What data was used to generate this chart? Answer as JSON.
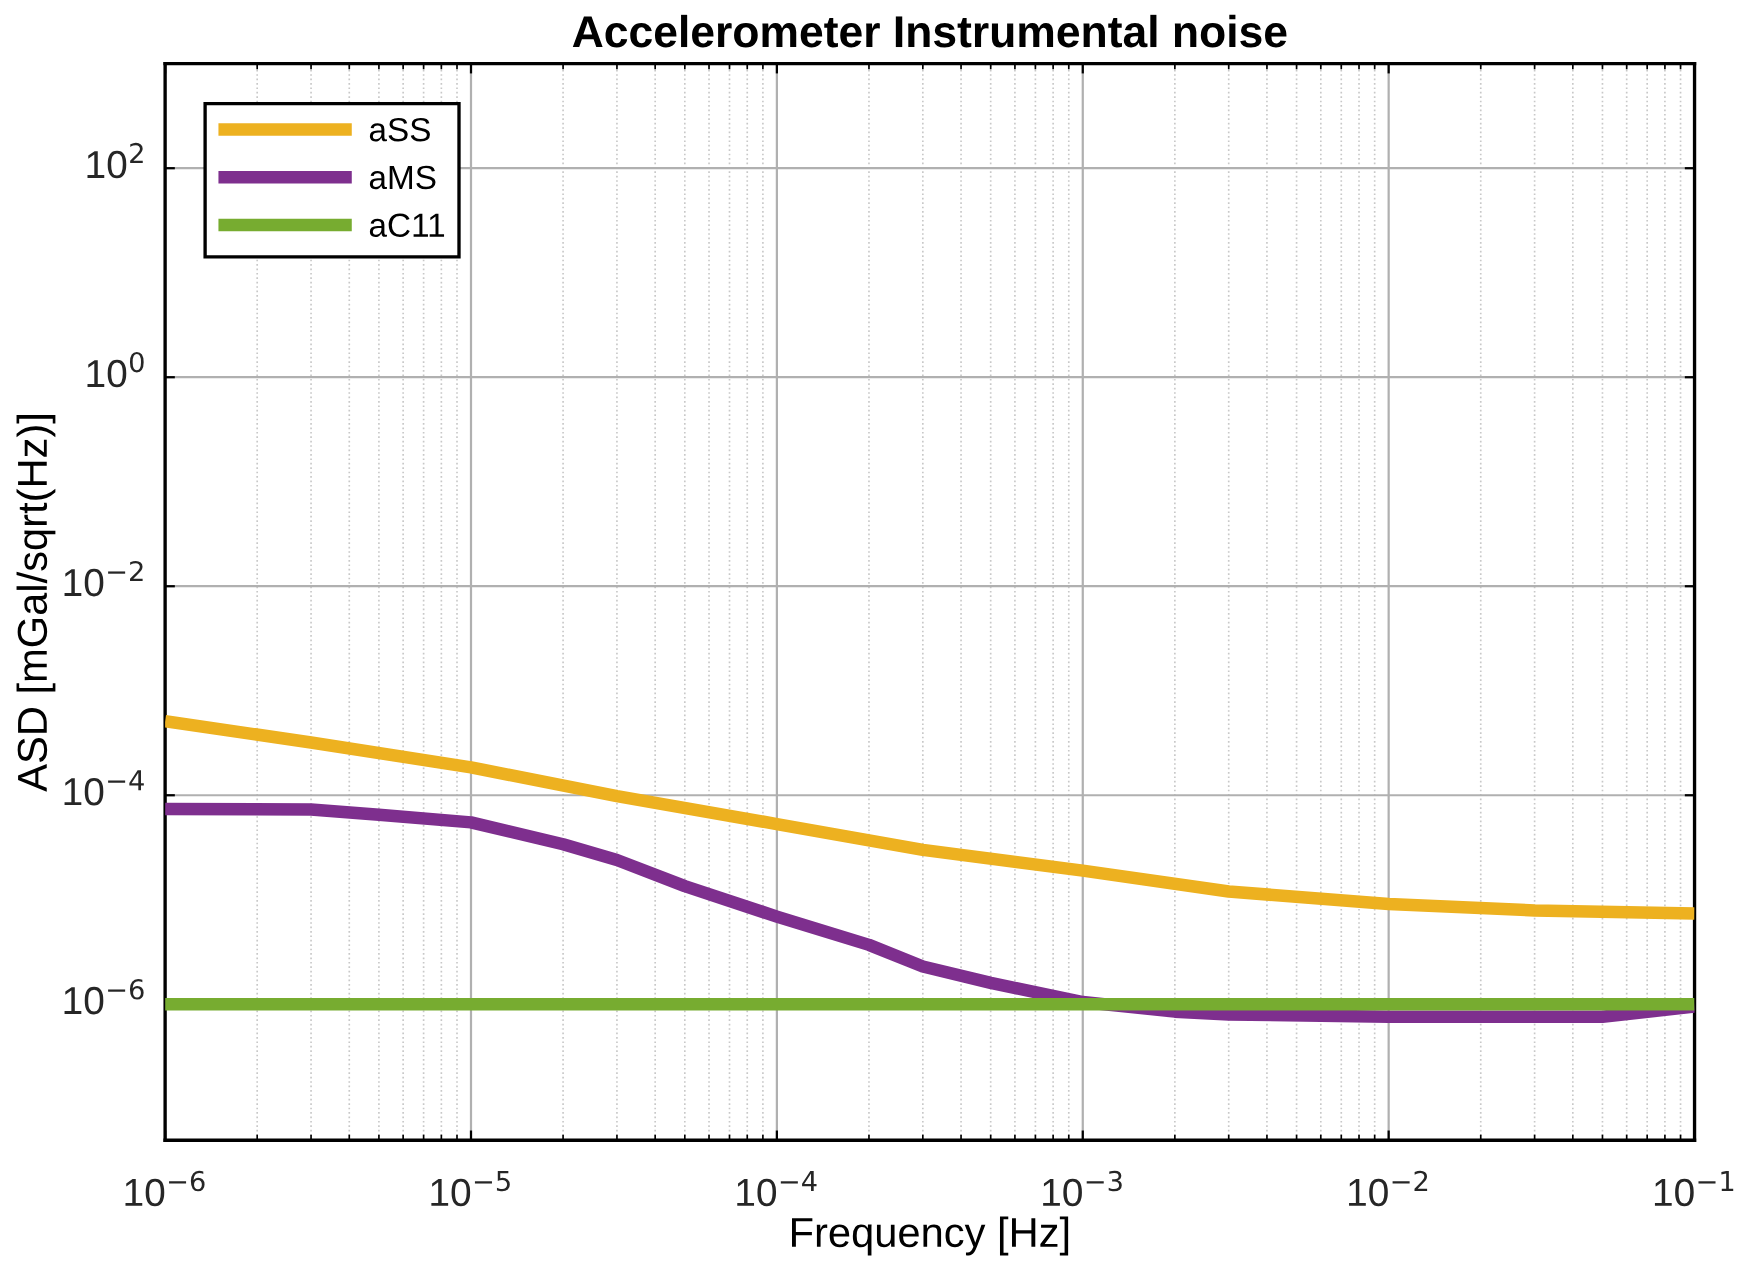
{
  "chart_data": {
    "type": "line",
    "title": "Accelerometer Instrumental noise",
    "xlabel": "Frequency [Hz]",
    "ylabel": "ASD [mGal/sqrt(Hz)]",
    "log": "xy",
    "grid": true,
    "legend": "top left",
    "line_style": "solid",
    "marker": "none",
    "xlim": [
      1e-06,
      0.1
    ],
    "ylim": [
      5e-08,
      1000
    ],
    "xticks": [
      {
        "value": 1e-06,
        "label": "10$^{−6}$"
      },
      {
        "value": 1e-05,
        "label": "10$^{−5}$"
      },
      {
        "value": 0.0001,
        "label": "10$^{−4}$"
      },
      {
        "value": 0.001,
        "label": "10$^{−3}$"
      },
      {
        "value": 0.01,
        "label": "10$^{−2}$"
      },
      {
        "value": 0.1,
        "label": "10$^{−1}$"
      }
    ],
    "yticks": [
      {
        "value": 1e-06,
        "label": "10$^{−6}$"
      },
      {
        "value": 0.0001,
        "label": "10$^{−4}$"
      },
      {
        "value": 0.01,
        "label": "10$^{−2}$"
      },
      {
        "value": 1,
        "label": "10$^{0}$"
      },
      {
        "value": 100,
        "label": "10$^{2}$"
      }
    ],
    "series": [
      {
        "name": "aSS",
        "color": "#edb120",
        "x": [
          1e-06,
          3e-06,
          1e-05,
          3e-05,
          0.0001,
          0.0003,
          0.001,
          0.003,
          0.01,
          0.03,
          0.1
        ],
        "values": [
          0.00051,
          0.00032,
          0.000185,
          9.8e-05,
          5.3e-05,
          3e-05,
          1.9e-05,
          1.2e-05,
          9.1e-06,
          7.9e-06,
          7.4e-06
        ]
      },
      {
        "name": "aMS",
        "color": "#7e2f8e",
        "x": [
          1e-06,
          3e-06,
          5e-06,
          1e-05,
          2e-05,
          3e-05,
          5e-05,
          0.0001,
          0.0002,
          0.0003,
          0.0005,
          0.001,
          0.002,
          0.003,
          0.01,
          0.05,
          0.1
        ],
        "values": [
          7.4e-05,
          7.3e-05,
          6.5e-05,
          5.5e-05,
          3.4e-05,
          2.4e-05,
          1.35e-05,
          6.9e-06,
          3.7e-06,
          2.3e-06,
          1.6e-06,
          1.05e-06,
          8.5e-07,
          8e-07,
          7.6e-07,
          7.6e-07,
          9.5e-07
        ]
      },
      {
        "name": "aC11",
        "color": "#77ac30",
        "x": [
          1e-06,
          0.1
        ],
        "values": [
          1e-06,
          1e-06
        ]
      }
    ]
  }
}
